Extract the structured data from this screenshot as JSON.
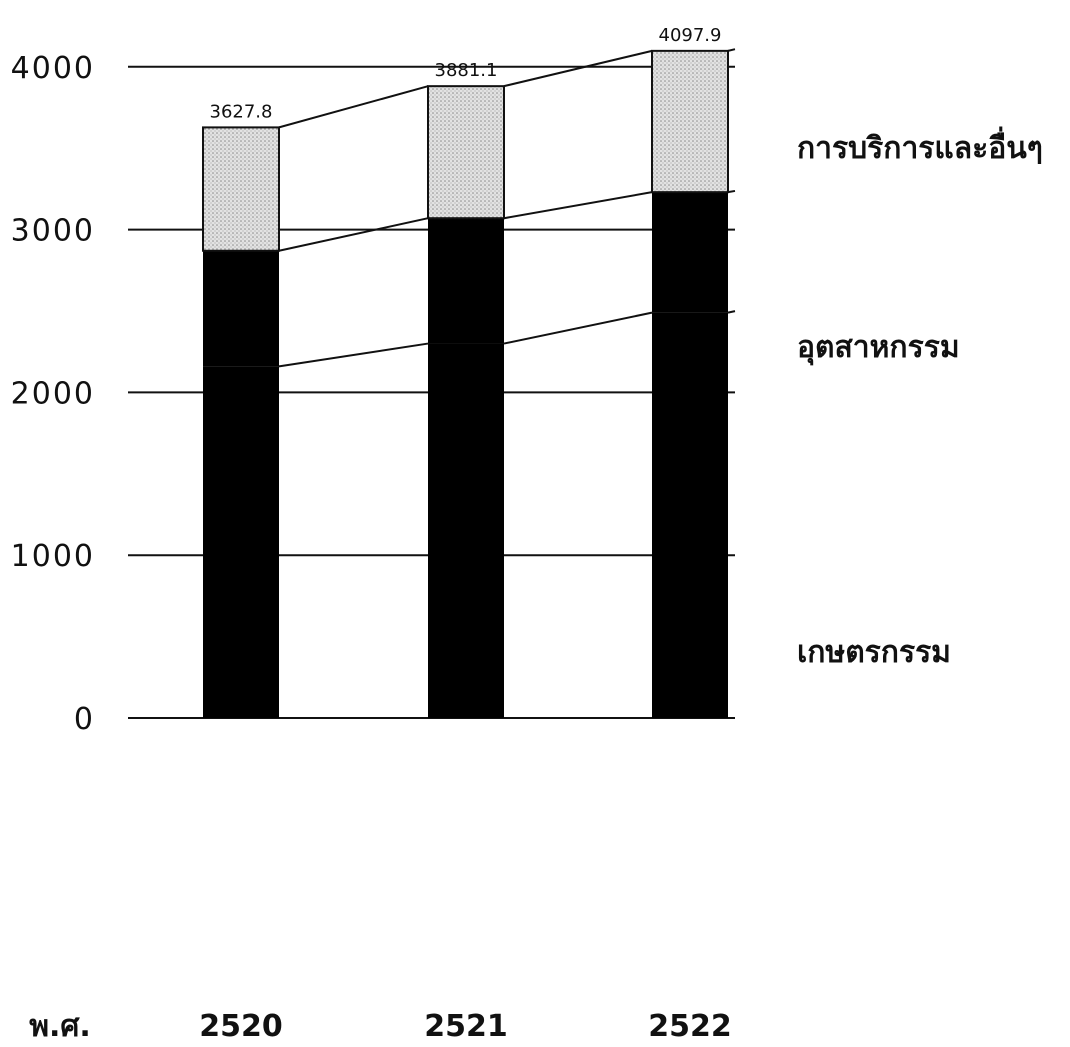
{
  "chart_data": {
    "type": "bar",
    "stacked": true,
    "categories": [
      "2520",
      "2521",
      "2522"
    ],
    "x_axis_prefix": "พ.ศ.",
    "series": [
      {
        "name": "เกษตรกรรม",
        "values": [
          2160,
          2300,
          2490
        ],
        "fill": "#000000"
      },
      {
        "name": "อุตสาหกรรม",
        "values": [
          710,
          770,
          740
        ],
        "fill": "#000000"
      },
      {
        "name": "การบริการและอื่นๆ",
        "values": [
          757.8,
          811.1,
          867.9
        ],
        "fill": "#d6d6d6"
      }
    ],
    "totals": [
      "3627.8",
      "3881.1",
      "4097.9"
    ],
    "yticks": [
      "0",
      "1000",
      "2000",
      "3000",
      "4000"
    ],
    "ylim": [
      0,
      4100
    ],
    "grid": true
  }
}
